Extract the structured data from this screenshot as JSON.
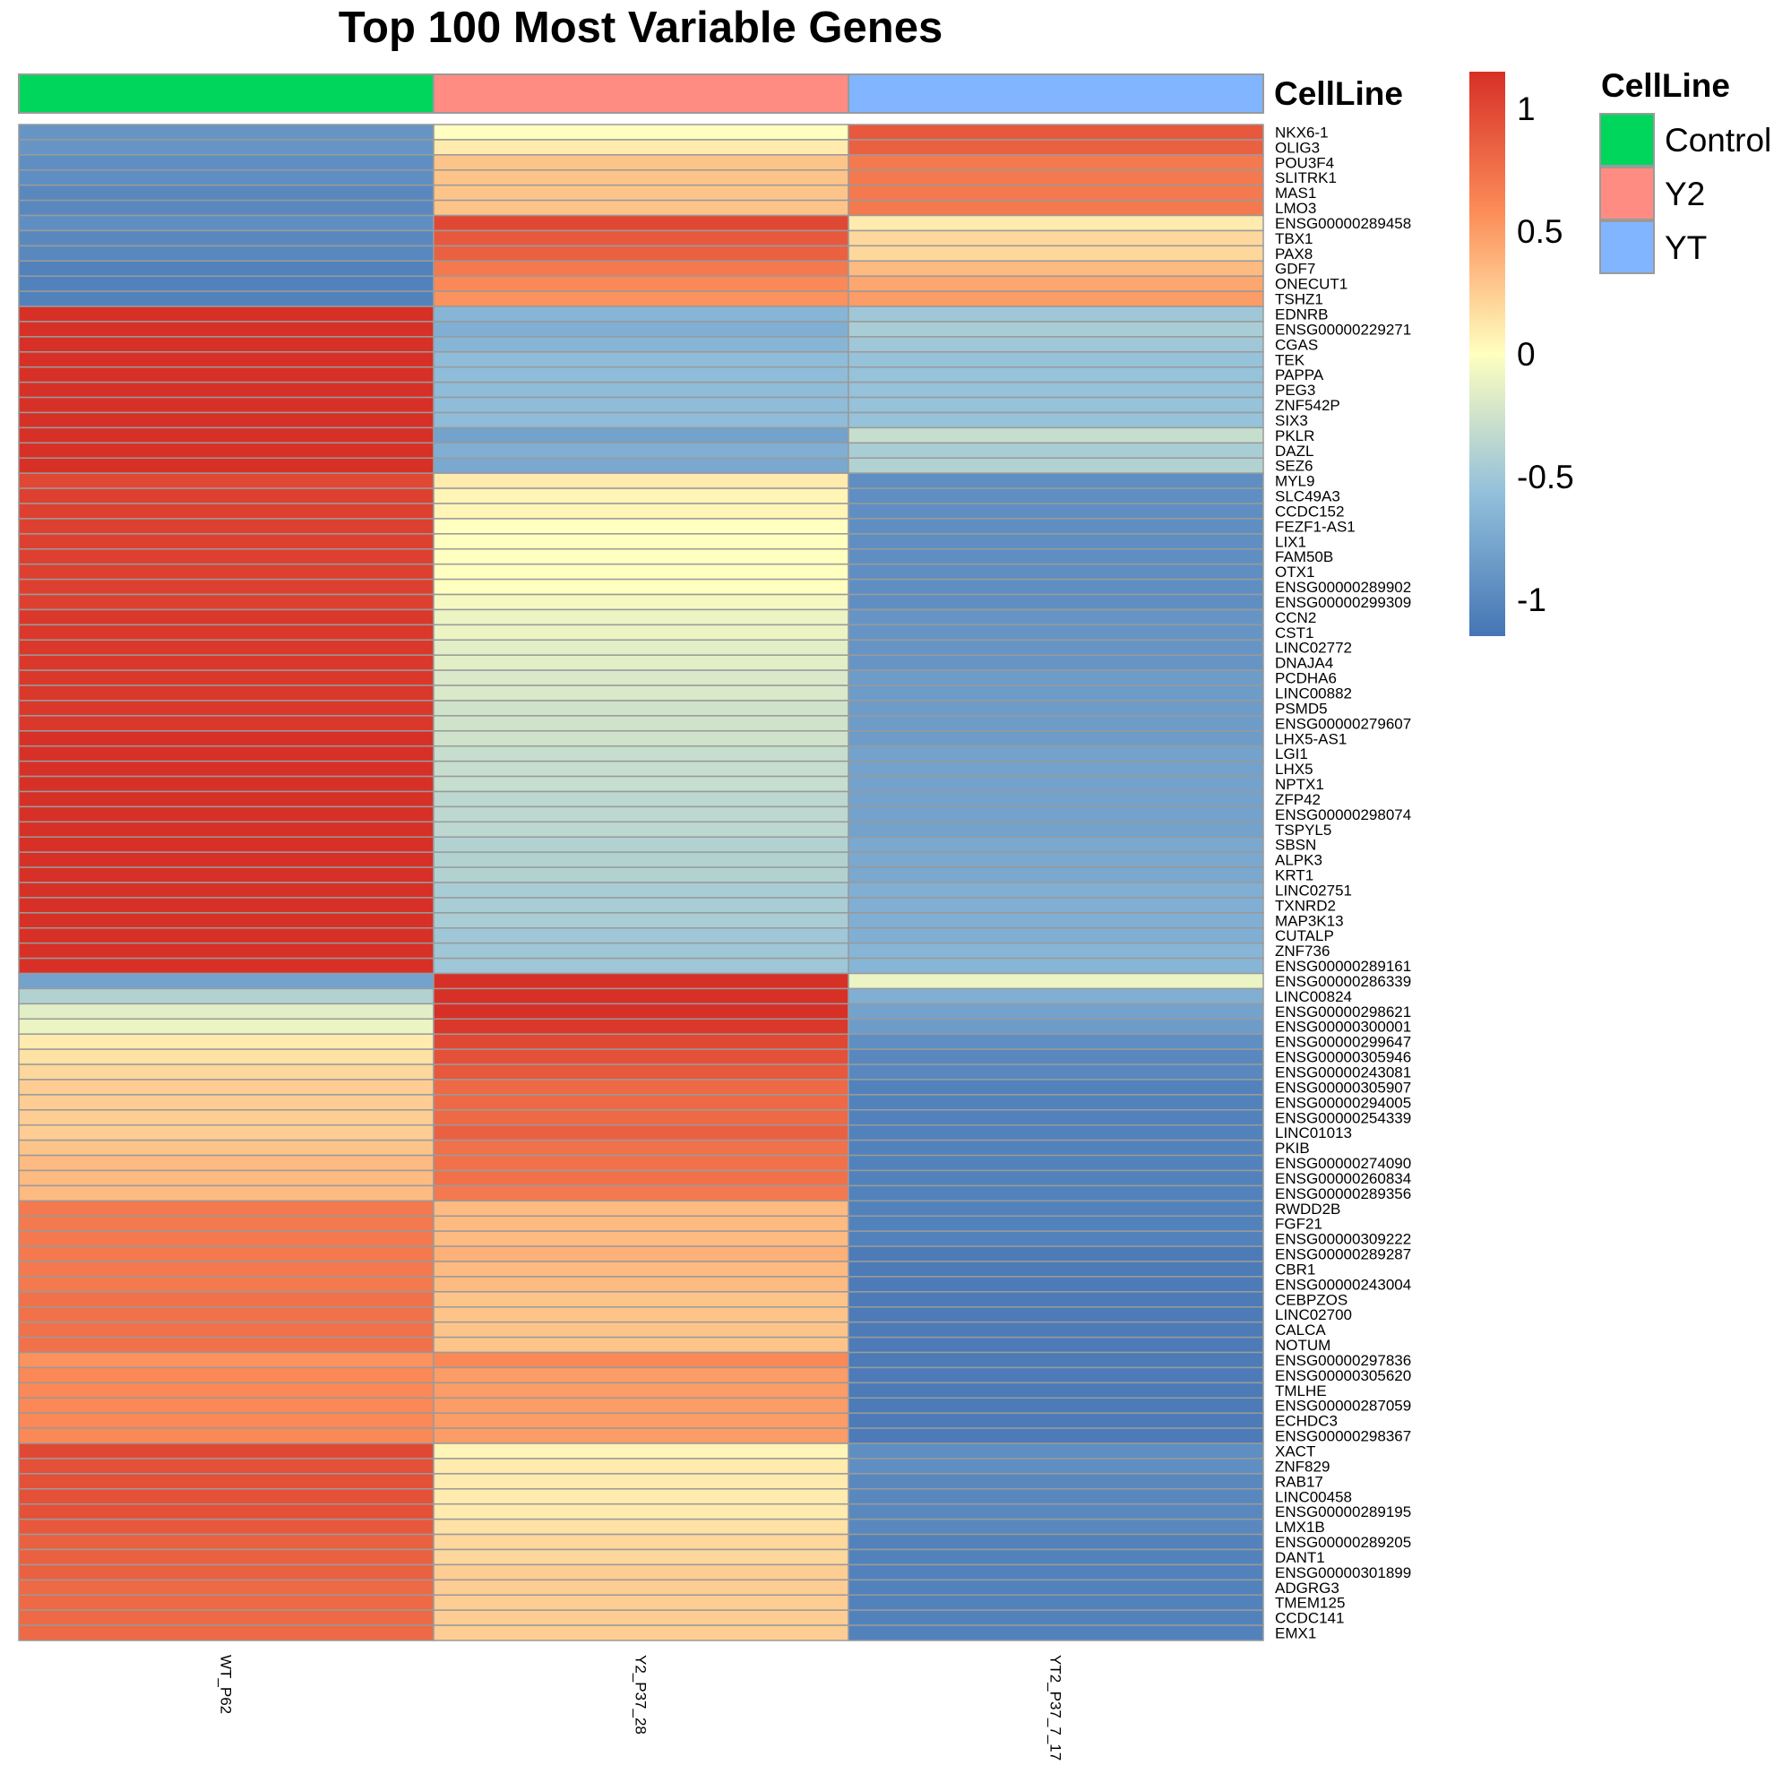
{
  "chart_data": {
    "type": "heatmap",
    "title": "Top 100 Most Variable Genes",
    "columns": [
      "WT_P62",
      "Y2_P37_28",
      "YT2_P37_7_17"
    ],
    "column_annotation": {
      "name": "CellLine",
      "values": [
        "Control",
        "Y2",
        "YT"
      ]
    },
    "legend": {
      "title": "CellLine",
      "position": "top-right",
      "entries": [
        {
          "label": "Control",
          "color": "#00D65C"
        },
        {
          "label": "Y2",
          "color": "#FF8C82"
        },
        {
          "label": "YT",
          "color": "#82B5FF"
        }
      ]
    },
    "color_scale": {
      "range": [
        -1.15,
        1.15
      ],
      "stops": [
        {
          "value": -1.15,
          "color": "#4575B4"
        },
        {
          "value": -0.575,
          "color": "#91BFDB"
        },
        {
          "value": 0,
          "color": "#FFFFBF"
        },
        {
          "value": 0.575,
          "color": "#FC8D59"
        },
        {
          "value": 1.15,
          "color": "#D73027"
        }
      ],
      "tick_labels": [
        "1",
        "0.5",
        "0",
        "-0.5",
        "-1"
      ],
      "ticks": [
        1,
        0.5,
        0,
        -0.5,
        -1
      ]
    },
    "rows": [
      {
        "gene": "NKX6-1",
        "values": [
          -0.9,
          0.0,
          0.9
        ]
      },
      {
        "gene": "OLIG3",
        "values": [
          -0.9,
          0.1,
          0.85
        ]
      },
      {
        "gene": "POU3F4",
        "values": [
          -0.95,
          0.3,
          0.7
        ]
      },
      {
        "gene": "SLITRK1",
        "values": [
          -0.95,
          0.3,
          0.7
        ]
      },
      {
        "gene": "MAS1",
        "values": [
          -1.0,
          0.3,
          0.7
        ]
      },
      {
        "gene": "LMO3",
        "values": [
          -1.0,
          0.3,
          0.7
        ]
      },
      {
        "gene": "ENSG00000289458",
        "values": [
          -0.95,
          1.0,
          0.1
        ]
      },
      {
        "gene": "TBX1",
        "values": [
          -1.0,
          0.9,
          0.2
        ]
      },
      {
        "gene": "PAX8",
        "values": [
          -1.0,
          0.85,
          0.2
        ]
      },
      {
        "gene": "GDF7",
        "values": [
          -1.05,
          0.7,
          0.35
        ]
      },
      {
        "gene": "ONECUT1",
        "values": [
          -1.05,
          0.6,
          0.45
        ]
      },
      {
        "gene": "TSHZ1",
        "values": [
          -1.05,
          0.55,
          0.5
        ]
      },
      {
        "gene": "EDNRB",
        "values": [
          1.15,
          -0.65,
          -0.5
        ]
      },
      {
        "gene": "ENSG00000229271",
        "values": [
          1.15,
          -0.7,
          -0.45
        ]
      },
      {
        "gene": "CGAS",
        "values": [
          1.15,
          -0.65,
          -0.5
        ]
      },
      {
        "gene": "TEK",
        "values": [
          1.15,
          -0.6,
          -0.55
        ]
      },
      {
        "gene": "PAPPA",
        "values": [
          1.15,
          -0.6,
          -0.55
        ]
      },
      {
        "gene": "PEG3",
        "values": [
          1.15,
          -0.6,
          -0.55
        ]
      },
      {
        "gene": "ZNF542P",
        "values": [
          1.15,
          -0.6,
          -0.55
        ]
      },
      {
        "gene": "SIX3",
        "values": [
          1.15,
          -0.6,
          -0.55
        ]
      },
      {
        "gene": "PKLR",
        "values": [
          1.15,
          -0.8,
          -0.3
        ]
      },
      {
        "gene": "DAZL",
        "values": [
          1.15,
          -0.7,
          -0.45
        ]
      },
      {
        "gene": "SEZ6",
        "values": [
          1.15,
          -0.75,
          -0.4
        ]
      },
      {
        "gene": "MYL9",
        "values": [
          1.0,
          0.1,
          -0.95
        ]
      },
      {
        "gene": "SLC49A3",
        "values": [
          1.05,
          0.05,
          -0.95
        ]
      },
      {
        "gene": "CCDC152",
        "values": [
          1.05,
          0.05,
          -0.95
        ]
      },
      {
        "gene": "FEZF1-AS1",
        "values": [
          1.05,
          0.0,
          -0.95
        ]
      },
      {
        "gene": "LIX1",
        "values": [
          1.05,
          0.0,
          -0.95
        ]
      },
      {
        "gene": "FAM50B",
        "values": [
          1.05,
          0.0,
          -0.95
        ]
      },
      {
        "gene": "OTX1",
        "values": [
          1.05,
          0.0,
          -0.95
        ]
      },
      {
        "gene": "ENSG00000289902",
        "values": [
          1.05,
          0.0,
          -0.95
        ]
      },
      {
        "gene": "ENSG00000299309",
        "values": [
          1.05,
          -0.05,
          -0.95
        ]
      },
      {
        "gene": "CCN2",
        "values": [
          1.1,
          -0.1,
          -0.9
        ]
      },
      {
        "gene": "CST1",
        "values": [
          1.1,
          -0.1,
          -0.9
        ]
      },
      {
        "gene": "LINC02772",
        "values": [
          1.1,
          -0.15,
          -0.9
        ]
      },
      {
        "gene": "DNAJA4",
        "values": [
          1.1,
          -0.15,
          -0.9
        ]
      },
      {
        "gene": "PCDHA6",
        "values": [
          1.1,
          -0.2,
          -0.85
        ]
      },
      {
        "gene": "LINC00882",
        "values": [
          1.1,
          -0.2,
          -0.85
        ]
      },
      {
        "gene": "PSMD5",
        "values": [
          1.1,
          -0.25,
          -0.85
        ]
      },
      {
        "gene": "ENSG00000279607",
        "values": [
          1.1,
          -0.25,
          -0.85
        ]
      },
      {
        "gene": "LHX5-AS1",
        "values": [
          1.15,
          -0.25,
          -0.85
        ]
      },
      {
        "gene": "LGI1",
        "values": [
          1.15,
          -0.3,
          -0.8
        ]
      },
      {
        "gene": "LHX5",
        "values": [
          1.15,
          -0.3,
          -0.8
        ]
      },
      {
        "gene": "NPTX1",
        "values": [
          1.15,
          -0.3,
          -0.8
        ]
      },
      {
        "gene": "ZFP42",
        "values": [
          1.15,
          -0.35,
          -0.8
        ]
      },
      {
        "gene": "ENSG00000298074",
        "values": [
          1.15,
          -0.35,
          -0.8
        ]
      },
      {
        "gene": "TSPYL5",
        "values": [
          1.15,
          -0.35,
          -0.8
        ]
      },
      {
        "gene": "SBSN",
        "values": [
          1.15,
          -0.4,
          -0.75
        ]
      },
      {
        "gene": "ALPK3",
        "values": [
          1.15,
          -0.4,
          -0.75
        ]
      },
      {
        "gene": "KRT1",
        "values": [
          1.15,
          -0.4,
          -0.75
        ]
      },
      {
        "gene": "LINC02751",
        "values": [
          1.15,
          -0.45,
          -0.7
        ]
      },
      {
        "gene": "TXNRD2",
        "values": [
          1.15,
          -0.45,
          -0.7
        ]
      },
      {
        "gene": "MAP3K13",
        "values": [
          1.15,
          -0.45,
          -0.7
        ]
      },
      {
        "gene": "CUTALP",
        "values": [
          1.15,
          -0.5,
          -0.7
        ]
      },
      {
        "gene": "ZNF736",
        "values": [
          1.15,
          -0.5,
          -0.65
        ]
      },
      {
        "gene": "ENSG00000289161",
        "values": [
          1.15,
          -0.5,
          -0.65
        ]
      },
      {
        "gene": "ENSG00000286339",
        "values": [
          -0.8,
          1.15,
          -0.1
        ]
      },
      {
        "gene": "LINC00824",
        "values": [
          -0.4,
          1.15,
          -0.7
        ]
      },
      {
        "gene": "ENSG00000298621",
        "values": [
          -0.15,
          1.15,
          -0.8
        ]
      },
      {
        "gene": "ENSG00000300001",
        "values": [
          -0.1,
          1.1,
          -0.85
        ]
      },
      {
        "gene": "ENSG00000299647",
        "values": [
          0.1,
          1.0,
          -0.95
        ]
      },
      {
        "gene": "ENSG00000305946",
        "values": [
          0.15,
          0.95,
          -1.0
        ]
      },
      {
        "gene": "ENSG00000243081",
        "values": [
          0.2,
          0.9,
          -1.0
        ]
      },
      {
        "gene": "ENSG00000305907",
        "values": [
          0.25,
          0.8,
          -1.05
        ]
      },
      {
        "gene": "ENSG00000294005",
        "values": [
          0.25,
          0.8,
          -1.05
        ]
      },
      {
        "gene": "ENSG00000254339",
        "values": [
          0.25,
          0.8,
          -1.05
        ]
      },
      {
        "gene": "LINC01013",
        "values": [
          0.25,
          0.85,
          -1.05
        ]
      },
      {
        "gene": "PKIB",
        "values": [
          0.3,
          0.75,
          -1.05
        ]
      },
      {
        "gene": "ENSG00000274090",
        "values": [
          0.35,
          0.75,
          -1.05
        ]
      },
      {
        "gene": "ENSG00000260834",
        "values": [
          0.35,
          0.75,
          -1.05
        ]
      },
      {
        "gene": "ENSG00000289356",
        "values": [
          0.35,
          0.7,
          -1.05
        ]
      },
      {
        "gene": "RWDD2B",
        "values": [
          0.7,
          0.35,
          -1.05
        ]
      },
      {
        "gene": "FGF21",
        "values": [
          0.7,
          0.35,
          -1.05
        ]
      },
      {
        "gene": "ENSG00000309222",
        "values": [
          0.7,
          0.35,
          -1.05
        ]
      },
      {
        "gene": "ENSG00000289287",
        "values": [
          0.7,
          0.4,
          -1.1
        ]
      },
      {
        "gene": "CBR1",
        "values": [
          0.7,
          0.35,
          -1.1
        ]
      },
      {
        "gene": "ENSG00000243004",
        "values": [
          0.7,
          0.35,
          -1.1
        ]
      },
      {
        "gene": "CEBPZOS",
        "values": [
          0.75,
          0.3,
          -1.1
        ]
      },
      {
        "gene": "LINC02700",
        "values": [
          0.75,
          0.3,
          -1.1
        ]
      },
      {
        "gene": "CALCA",
        "values": [
          0.75,
          0.3,
          -1.1
        ]
      },
      {
        "gene": "NOTUM",
        "values": [
          0.75,
          0.3,
          -1.1
        ]
      },
      {
        "gene": "ENSG00000297836",
        "values": [
          0.55,
          0.6,
          -1.1
        ]
      },
      {
        "gene": "ENSG00000305620",
        "values": [
          0.6,
          0.5,
          -1.1
        ]
      },
      {
        "gene": "TMLHE",
        "values": [
          0.6,
          0.5,
          -1.1
        ]
      },
      {
        "gene": "ENSG00000287059",
        "values": [
          0.6,
          0.5,
          -1.1
        ]
      },
      {
        "gene": "ECHDC3",
        "values": [
          0.6,
          0.5,
          -1.1
        ]
      },
      {
        "gene": "ENSG00000298367",
        "values": [
          0.6,
          0.5,
          -1.1
        ]
      },
      {
        "gene": "XACT",
        "values": [
          1.0,
          0.05,
          -0.95
        ]
      },
      {
        "gene": "ZNF829",
        "values": [
          0.95,
          0.1,
          -0.95
        ]
      },
      {
        "gene": "RAB17",
        "values": [
          0.95,
          0.1,
          -1.0
        ]
      },
      {
        "gene": "LINC00458",
        "values": [
          0.95,
          0.1,
          -1.0
        ]
      },
      {
        "gene": "ENSG00000289195",
        "values": [
          0.95,
          0.1,
          -1.0
        ]
      },
      {
        "gene": "LMX1B",
        "values": [
          0.9,
          0.15,
          -1.0
        ]
      },
      {
        "gene": "ENSG00000289205",
        "values": [
          0.85,
          0.2,
          -1.05
        ]
      },
      {
        "gene": "DANT1",
        "values": [
          0.85,
          0.2,
          -1.05
        ]
      },
      {
        "gene": "ENSG00000301899",
        "values": [
          0.85,
          0.25,
          -1.05
        ]
      },
      {
        "gene": "ADGRG3",
        "values": [
          0.8,
          0.25,
          -1.05
        ]
      },
      {
        "gene": "TMEM125",
        "values": [
          0.8,
          0.25,
          -1.05
        ]
      },
      {
        "gene": "CCDC141",
        "values": [
          0.8,
          0.25,
          -1.05
        ]
      },
      {
        "gene": "EMX1",
        "values": [
          0.8,
          0.25,
          -1.05
        ]
      }
    ]
  }
}
